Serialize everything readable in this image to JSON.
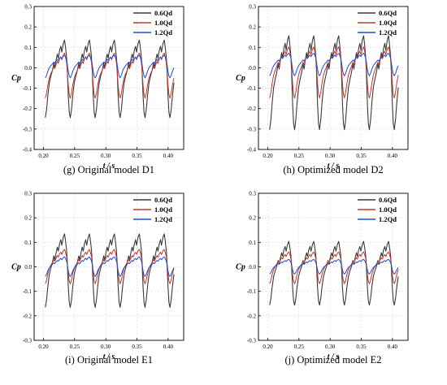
{
  "chart_data": [
    {
      "type": "line",
      "panel_label": "(g)",
      "caption": "Original model D1",
      "xlabel": "t / s",
      "ylabel": "Cp",
      "xlim": [
        0.185,
        0.425
      ],
      "ylim": [
        -0.4,
        0.3
      ],
      "x_ticks": [
        "0.20",
        "0.25",
        "0.30",
        "0.35",
        "0.40"
      ],
      "y_ticks": [
        "-0.4",
        "-0.3",
        "-0.2",
        "-0.1",
        "0.0",
        "0.1",
        "0.2",
        "0.3"
      ],
      "grid": true,
      "legend_position": "top-right",
      "x_range": [
        0.203,
        0.41
      ],
      "period": 0.04,
      "series": [
        {
          "name": "0.6Qd",
          "color": "#3a3a3a",
          "min": -0.25,
          "max": 0.13,
          "base": -0.02
        },
        {
          "name": "1.0Qd",
          "color": "#c0392b",
          "min": -0.15,
          "max": 0.07,
          "base": 0.0
        },
        {
          "name": "1.2Qd",
          "color": "#1f4fd0",
          "min": -0.05,
          "max": 0.06,
          "base": 0.02
        }
      ]
    },
    {
      "type": "line",
      "panel_label": "(h)",
      "caption": "Optimized model D2",
      "xlabel": "t / s",
      "ylabel": "Cp",
      "xlim": [
        0.185,
        0.425
      ],
      "ylim": [
        -0.4,
        0.3
      ],
      "x_ticks": [
        "0.20",
        "0.25",
        "0.30",
        "0.35",
        "0.40"
      ],
      "y_ticks": [
        "-0.4",
        "-0.3",
        "-0.2",
        "-0.1",
        "0.0",
        "0.1",
        "0.2",
        "0.3"
      ],
      "grid": true,
      "legend_position": "top-right",
      "x_range": [
        0.203,
        0.41
      ],
      "period": 0.04,
      "series": [
        {
          "name": "0.6Qd",
          "color": "#3a3a3a",
          "min": -0.31,
          "max": 0.15,
          "base": 0.03
        },
        {
          "name": "1.0Qd",
          "color": "#c0392b",
          "min": -0.15,
          "max": 0.1,
          "base": 0.04
        },
        {
          "name": "1.2Qd",
          "color": "#1f4fd0",
          "min": -0.04,
          "max": 0.07,
          "base": 0.0
        }
      ]
    },
    {
      "type": "line",
      "panel_label": "(i)",
      "caption": "Original model E1",
      "xlabel": "t / s",
      "ylabel": "Cp",
      "xlim": [
        0.185,
        0.425
      ],
      "ylim": [
        -0.3,
        0.3
      ],
      "x_ticks": [
        "0.20",
        "0.25",
        "0.30",
        "0.35",
        "0.40"
      ],
      "y_ticks": [
        "-0.3",
        "-0.2",
        "-0.1",
        "0.0",
        "0.1",
        "0.2",
        "0.3"
      ],
      "grid": true,
      "legend_position": "top-right",
      "x_range": [
        0.203,
        0.41
      ],
      "period": 0.04,
      "series": [
        {
          "name": "0.6Qd",
          "color": "#3a3a3a",
          "min": -0.17,
          "max": 0.13,
          "base": 0.01
        },
        {
          "name": "1.0Qd",
          "color": "#c0392b",
          "min": -0.07,
          "max": 0.07,
          "base": 0.01
        },
        {
          "name": "1.2Qd",
          "color": "#1f4fd0",
          "min": -0.04,
          "max": 0.04,
          "base": 0.0
        }
      ]
    },
    {
      "type": "line",
      "panel_label": "(j)",
      "caption": "Optimized model E2",
      "xlabel": "t / s",
      "ylabel": "Cp",
      "xlim": [
        0.185,
        0.425
      ],
      "ylim": [
        -0.3,
        0.3
      ],
      "x_ticks": [
        "0.20",
        "0.25",
        "0.30",
        "0.35",
        "0.40"
      ],
      "y_ticks": [
        "-0.3",
        "-0.2",
        "-0.1",
        "0.0",
        "0.1",
        "0.2",
        "0.3"
      ],
      "grid": true,
      "legend_position": "top-right",
      "x_range": [
        0.203,
        0.41
      ],
      "period": 0.04,
      "series": [
        {
          "name": "0.6Qd",
          "color": "#3a3a3a",
          "min": -0.16,
          "max": 0.1,
          "base": 0.0
        },
        {
          "name": "1.0Qd",
          "color": "#c0392b",
          "min": -0.07,
          "max": 0.06,
          "base": 0.0
        },
        {
          "name": "1.2Qd",
          "color": "#1f4fd0",
          "min": -0.03,
          "max": 0.03,
          "base": -0.005
        }
      ]
    }
  ]
}
